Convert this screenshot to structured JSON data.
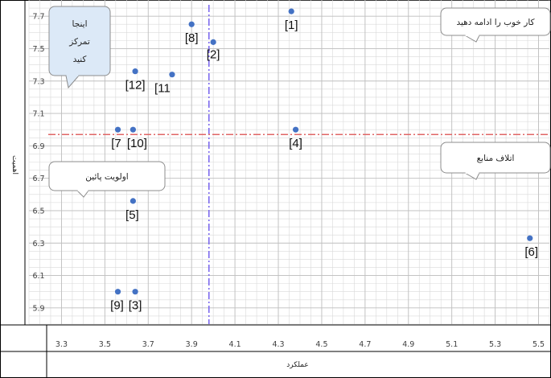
{
  "chart_data": {
    "type": "scatter",
    "title": "",
    "xlabel": "عملکرد",
    "ylabel": "اهمیت",
    "xlim": [
      3.15,
      5.55
    ],
    "ylim": [
      5.8,
      7.8
    ],
    "x_ticks": [
      3.3,
      3.5,
      3.7,
      3.9,
      4.1,
      4.3,
      4.5,
      4.7,
      4.9,
      5.1,
      5.3,
      5.5
    ],
    "y_ticks": [
      5.9,
      6.1,
      6.3,
      6.5,
      6.7,
      6.9,
      7.1,
      7.3,
      7.5,
      7.7
    ],
    "grid": true,
    "point_color": "#4472C4",
    "points": [
      {
        "label": "[1]",
        "x": 4.36,
        "y": 7.73
      },
      {
        "label": "[2]",
        "x": 4.0,
        "y": 7.54
      },
      {
        "label": "[3]",
        "x": 3.64,
        "y": 6.0
      },
      {
        "label": "[4]",
        "x": 4.38,
        "y": 7.0
      },
      {
        "label": "[5]",
        "x": 3.63,
        "y": 6.56
      },
      {
        "label": "[6]",
        "x": 5.46,
        "y": 6.33
      },
      {
        "label": "[7",
        "x": 3.56,
        "y": 7.0
      },
      {
        "label": "[8]",
        "x": 3.9,
        "y": 7.65
      },
      {
        "label": "[9]",
        "x": 3.56,
        "y": 6.0
      },
      {
        "label": "[10]",
        "x": 3.63,
        "y": 7.0
      },
      {
        "label": "[11",
        "x": 3.81,
        "y": 7.34
      },
      {
        "label": "[12]",
        "x": 3.64,
        "y": 7.36
      }
    ],
    "reference_lines": {
      "vertical": {
        "x": 3.98,
        "color": "#7B68EE"
      },
      "horizontal": {
        "y": 6.97,
        "color": "#E06666"
      }
    },
    "annotations": [
      {
        "text": "کار خوب را ادامه دهید",
        "quadrant": "top-right"
      },
      {
        "text": "اینجا تمرکز کنید",
        "lines": [
          "اینجا",
          "تمرکز",
          "کنید"
        ],
        "quadrant": "top-left"
      },
      {
        "text": "اتلاف منابع",
        "quadrant": "bottom-right"
      },
      {
        "text": "اولویت پائین",
        "quadrant": "bottom-left"
      }
    ]
  }
}
